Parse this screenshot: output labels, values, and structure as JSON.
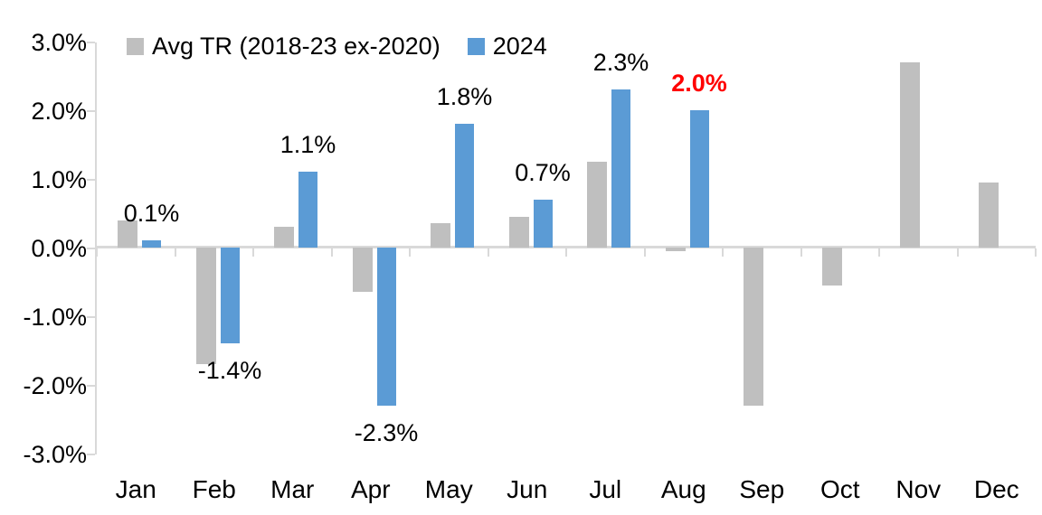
{
  "chart_data": {
    "type": "bar",
    "title": "",
    "xlabel": "",
    "ylabel": "",
    "categories": [
      "Jan",
      "Feb",
      "Mar",
      "Apr",
      "May",
      "Jun",
      "Jul",
      "Aug",
      "Sep",
      "Oct",
      "Nov",
      "Dec"
    ],
    "series": [
      {
        "name": "Avg TR (2018-23 ex-2020)",
        "color": "#BFBFBF",
        "values": [
          0.4,
          -1.7,
          0.3,
          -0.65,
          0.35,
          0.45,
          1.25,
          -0.05,
          -2.3,
          -0.55,
          2.7,
          0.95
        ]
      },
      {
        "name": "2024",
        "color": "#5B9BD5",
        "values": [
          0.1,
          -1.4,
          1.1,
          -2.3,
          1.8,
          0.7,
          2.3,
          2.0,
          null,
          null,
          null,
          null
        ]
      }
    ],
    "data_labels": [
      {
        "month": "Jan",
        "text": "0.1%",
        "color": "#000000",
        "bold": false
      },
      {
        "month": "Feb",
        "text": "-1.4%",
        "color": "#000000",
        "bold": false
      },
      {
        "month": "Mar",
        "text": "1.1%",
        "color": "#000000",
        "bold": false
      },
      {
        "month": "Apr",
        "text": "-2.3%",
        "color": "#000000",
        "bold": false
      },
      {
        "month": "May",
        "text": "1.8%",
        "color": "#000000",
        "bold": false
      },
      {
        "month": "Jun",
        "text": "0.7%",
        "color": "#000000",
        "bold": false
      },
      {
        "month": "Jul",
        "text": "2.3%",
        "color": "#000000",
        "bold": false
      },
      {
        "month": "Aug",
        "text": "2.0%",
        "color": "#FF0000",
        "bold": true
      }
    ],
    "y_ticks": [
      "3.0%",
      "2.0%",
      "1.0%",
      "0.0%",
      "-1.0%",
      "-2.0%",
      "-3.0%"
    ],
    "ylim": [
      -3.0,
      3.0
    ],
    "grid": false,
    "legend_position": "top"
  },
  "colors": {
    "axis": "#D9D9D9",
    "text": "#000000",
    "highlight_red": "#FF0000",
    "background": "#FFFFFF"
  }
}
